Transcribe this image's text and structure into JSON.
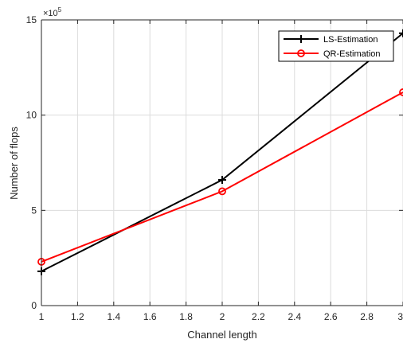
{
  "chart_data": {
    "type": "line",
    "title": "",
    "xlabel": "Channel length",
    "ylabel": "Number of flops",
    "y_exponent_label": "×10",
    "y_exponent_power": "5",
    "xlim": [
      1,
      3
    ],
    "ylim": [
      0,
      15
    ],
    "x_ticks": [
      1,
      1.2,
      1.4,
      1.6,
      1.8,
      2,
      2.2,
      2.4,
      2.6,
      2.8,
      3
    ],
    "x_tick_labels": [
      "1",
      "1.2",
      "1.4",
      "1.6",
      "1.8",
      "2",
      "2.2",
      "2.4",
      "2.6",
      "2.8",
      "3"
    ],
    "y_ticks": [
      0,
      5,
      10,
      15
    ],
    "y_tick_labels": [
      "0",
      "5",
      "10",
      "15"
    ],
    "grid": true,
    "legend_position": "top-right",
    "series": [
      {
        "name": "LS-Estimation",
        "color": "#000000",
        "marker": "plus",
        "x": [
          1,
          2,
          3
        ],
        "y": [
          1.8,
          6.6,
          14.3
        ]
      },
      {
        "name": "QR-Estimation",
        "color": "#ff0000",
        "marker": "circle",
        "x": [
          1,
          2,
          3
        ],
        "y": [
          2.3,
          6.0,
          11.2
        ]
      }
    ]
  }
}
